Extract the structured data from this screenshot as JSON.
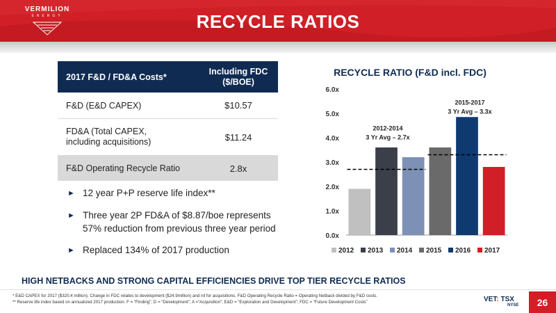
{
  "brand": {
    "name": "VERMILION",
    "sub": "ENERGY",
    "accent": "#d01f26",
    "navy": "#0f2b52"
  },
  "title": "RECYCLE RATIOS",
  "table": {
    "header": {
      "label": "2017 F&D / FD&A Costs*",
      "value_line1": "Including FDC",
      "value_line2": "($/BOE)"
    },
    "rows": [
      {
        "label": "F&D (E&D CAPEX)",
        "value": "$10.57"
      },
      {
        "label_line1": "FD&A (Total CAPEX,",
        "label_line2": "including acquisitions)",
        "value": "$11.24"
      },
      {
        "label": "F&D Operating Recycle Ratio",
        "value": "2.8x"
      }
    ]
  },
  "bullets": [
    {
      "line1": "12 year P+P reserve life index**"
    },
    {
      "line1": "Three year 2P FD&A of $8.87/boe represents",
      "line2": "57% reduction from previous three year period"
    },
    {
      "line1": "Replaced 134% of 2017 production"
    }
  ],
  "chart_data": {
    "type": "bar",
    "title": "RECYCLE RATIO (F&D incl. FDC)",
    "categories": [
      "2012",
      "2013",
      "2014",
      "2015",
      "2016",
      "2017"
    ],
    "values": [
      1.9,
      3.6,
      3.2,
      3.6,
      4.85,
      2.8
    ],
    "colors": [
      "#c0c0c0",
      "#3b3f4a",
      "#7d90b5",
      "#6a6a6a",
      "#0f3a70",
      "#d01f26"
    ],
    "ylim": [
      0,
      6
    ],
    "yticks": [
      "0.0x",
      "1.0x",
      "2.0x",
      "3.0x",
      "4.0x",
      "5.0x",
      "6.0x"
    ],
    "legend": "bottom",
    "annotations": [
      {
        "line1": "2012-2014",
        "line2": "3 Yr Avg – 2.7x",
        "avg": 2.7,
        "from": 0,
        "to": 2
      },
      {
        "line1": "2015-2017",
        "line2": "3 Yr Avg – 3.3x",
        "avg": 3.3,
        "from": 3,
        "to": 5
      }
    ]
  },
  "tagline": "HIGH NETBACKS AND STRONG CAPITAL EFFICIENCIES DRIVE TOP TIER RECYCLE RATIOS",
  "footnotes": {
    "line1": "*   E&D CAPEX for 2017 ($320.4 million).  Change in FDC relates to development ($24.9million) and nil for acquisitions. F&D Operating Recycle Ratio = Operating Netback divided by F&D costs.",
    "line2": "** Reserve life index based on annualized 2017 production. F = “Finding”; D = “Development”; A =“Acquisition”; E&D = “Exploration and Development”; FDC = “Future Development Costs”"
  },
  "exchange": {
    "vet": "VET",
    "tsx": "TSX",
    "nyse": "NYSE"
  },
  "page_number": "26"
}
